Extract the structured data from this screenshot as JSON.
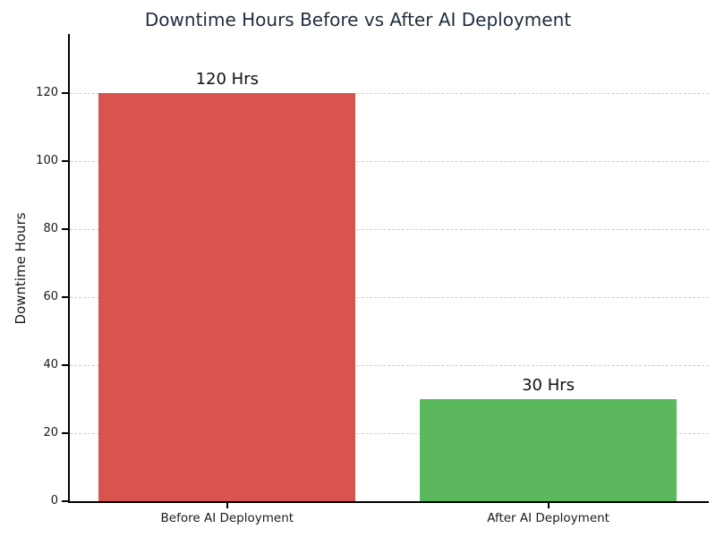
{
  "figure": {
    "background": "#ffffff"
  },
  "chart_data": {
    "type": "bar",
    "title": "Downtime Hours Before vs After AI Deployment",
    "xlabel": "",
    "ylabel": "Downtime Hours",
    "categories": [
      "Before AI Deployment",
      "After AI Deployment"
    ],
    "values": [
      120,
      30
    ],
    "bar_labels": [
      "120 Hrs",
      "30 Hrs"
    ],
    "bar_colors": [
      "#d9534f",
      "#5cb85c"
    ],
    "yticks": [
      0,
      20,
      40,
      60,
      80,
      100,
      120
    ],
    "ylim": [
      0,
      137.5
    ],
    "xlim": [
      -0.49,
      1.5
    ],
    "bar_width": 0.8,
    "grid": "horizontal-dashed",
    "grid_color": "#cccccc",
    "spine_color": "#000000",
    "title_color": "#1f2d3d",
    "text_color": "#1a1a1a",
    "legend": "none"
  }
}
